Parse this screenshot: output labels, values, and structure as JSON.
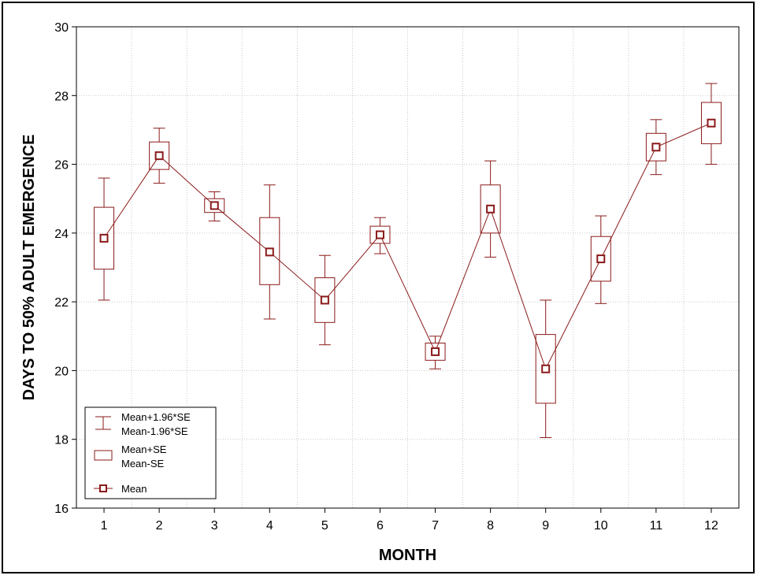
{
  "chart_data": {
    "type": "box",
    "title": "",
    "xlabel": "MONTH",
    "ylabel": "DAYS TO 50% ADULT EMERGENCE",
    "ylim": [
      16,
      30
    ],
    "y_ticks": [
      16,
      18,
      20,
      22,
      24,
      26,
      28,
      30
    ],
    "categories": [
      "1",
      "2",
      "3",
      "4",
      "5",
      "6",
      "7",
      "8",
      "9",
      "10",
      "11",
      "12"
    ],
    "grid": true,
    "legend_position": "bottom-left",
    "colors": {
      "series": "#8b1a1a",
      "grid": "#c8c8c8"
    },
    "legend": [
      {
        "symbol": "whisker",
        "lines": [
          "Mean+1.96*SE",
          "Mean-1.96*SE"
        ]
      },
      {
        "symbol": "box",
        "lines": [
          "Mean+SE",
          "Mean-SE"
        ]
      },
      {
        "symbol": "mean",
        "lines": [
          "Mean"
        ]
      }
    ],
    "series": [
      {
        "name": "Mean",
        "values": [
          23.85,
          26.25,
          24.8,
          23.45,
          22.05,
          23.95,
          20.55,
          24.7,
          20.05,
          23.25,
          26.5,
          27.2
        ]
      },
      {
        "name": "Mean+SE",
        "values": [
          24.75,
          26.65,
          25.0,
          24.45,
          22.7,
          24.2,
          20.8,
          25.4,
          21.05,
          23.9,
          26.9,
          27.8
        ]
      },
      {
        "name": "Mean-SE",
        "values": [
          22.95,
          25.85,
          24.6,
          22.5,
          21.4,
          23.7,
          20.3,
          24.0,
          19.05,
          22.6,
          26.1,
          26.6
        ]
      },
      {
        "name": "Mean+1.96*SE",
        "values": [
          25.6,
          27.05,
          25.2,
          25.4,
          23.35,
          24.45,
          21.0,
          26.1,
          22.05,
          24.5,
          27.3,
          28.35
        ]
      },
      {
        "name": "Mean-1.96*SE",
        "values": [
          22.05,
          25.45,
          24.35,
          21.5,
          20.75,
          23.4,
          20.05,
          23.3,
          18.05,
          21.95,
          25.7,
          26.0
        ]
      }
    ]
  }
}
